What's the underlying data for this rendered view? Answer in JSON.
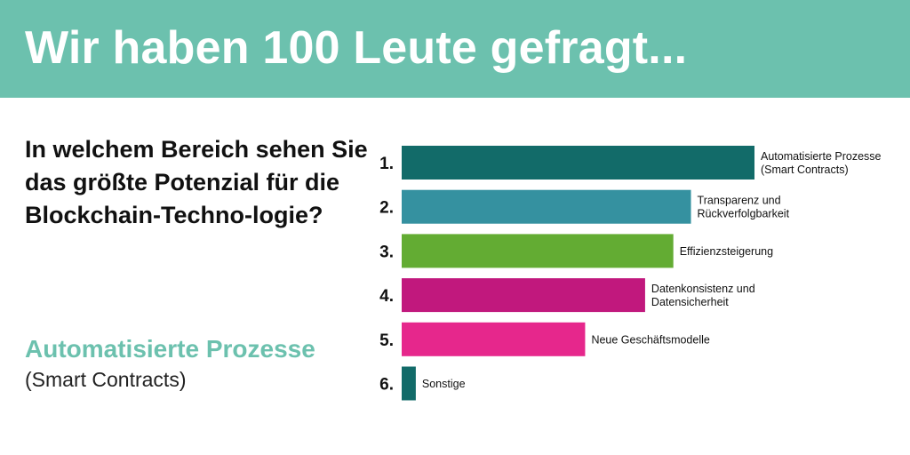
{
  "header": {
    "title": "Wir haben 100 Leute gefragt...",
    "background_color": "#6cc1ae"
  },
  "question": "In welchem Bereich sehen Sie das größte Potenzial für die Blockchain-Techno-logie?",
  "answer": {
    "main": "Automatisierte Prozesse",
    "sub": "(Smart Contracts)",
    "color": "#6cc1ae"
  },
  "chart_data": {
    "type": "bar",
    "orientation": "horizontal",
    "ranks": [
      "1.",
      "2.",
      "3.",
      "4.",
      "5.",
      "6."
    ],
    "categories": [
      [
        "Automatisierte Prozesse",
        "(Smart Contracts)"
      ],
      [
        "Transparenz und",
        "Rückverfolgbarkeit"
      ],
      [
        "Effizienzsteigerung"
      ],
      [
        "Datenkonsistenz und",
        "Datensicherheit"
      ],
      [
        "Neue Geschäftsmodelle"
      ],
      [
        "Sonstige"
      ]
    ],
    "values": [
      100,
      82,
      77,
      69,
      52,
      4
    ],
    "colors": [
      "#126b69",
      "#3591a0",
      "#63ac33",
      "#c1187d",
      "#e6278c",
      "#126b69"
    ],
    "title": "",
    "xlabel": "",
    "ylabel": "",
    "xlim": [
      0,
      100
    ],
    "grid": false,
    "legend": "none"
  }
}
